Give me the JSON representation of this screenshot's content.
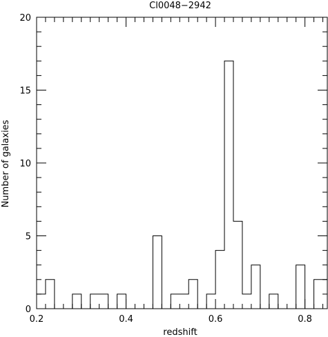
{
  "chart_data": {
    "type": "bar",
    "title": "Cl0048−2942",
    "xlabel": "redshift",
    "ylabel": "Number of galaxies",
    "xlim": [
      0.2,
      0.85
    ],
    "ylim": [
      0,
      20
    ],
    "grid": false,
    "bin_width": 0.02,
    "bins": [
      {
        "x0": 0.2,
        "x1": 0.22,
        "count": 1
      },
      {
        "x0": 0.22,
        "x1": 0.24,
        "count": 2
      },
      {
        "x0": 0.24,
        "x1": 0.26,
        "count": 0
      },
      {
        "x0": 0.26,
        "x1": 0.28,
        "count": 0
      },
      {
        "x0": 0.28,
        "x1": 0.3,
        "count": 1
      },
      {
        "x0": 0.3,
        "x1": 0.32,
        "count": 0
      },
      {
        "x0": 0.32,
        "x1": 0.34,
        "count": 1
      },
      {
        "x0": 0.34,
        "x1": 0.36,
        "count": 1
      },
      {
        "x0": 0.36,
        "x1": 0.38,
        "count": 0
      },
      {
        "x0": 0.38,
        "x1": 0.4,
        "count": 1
      },
      {
        "x0": 0.4,
        "x1": 0.42,
        "count": 0
      },
      {
        "x0": 0.42,
        "x1": 0.44,
        "count": 0
      },
      {
        "x0": 0.44,
        "x1": 0.46,
        "count": 0
      },
      {
        "x0": 0.46,
        "x1": 0.48,
        "count": 5
      },
      {
        "x0": 0.48,
        "x1": 0.5,
        "count": 0
      },
      {
        "x0": 0.5,
        "x1": 0.52,
        "count": 1
      },
      {
        "x0": 0.52,
        "x1": 0.54,
        "count": 1
      },
      {
        "x0": 0.54,
        "x1": 0.56,
        "count": 2
      },
      {
        "x0": 0.56,
        "x1": 0.58,
        "count": 0
      },
      {
        "x0": 0.58,
        "x1": 0.6,
        "count": 1
      },
      {
        "x0": 0.6,
        "x1": 0.62,
        "count": 4
      },
      {
        "x0": 0.62,
        "x1": 0.64,
        "count": 17
      },
      {
        "x0": 0.64,
        "x1": 0.66,
        "count": 6
      },
      {
        "x0": 0.66,
        "x1": 0.68,
        "count": 1
      },
      {
        "x0": 0.68,
        "x1": 0.7,
        "count": 3
      },
      {
        "x0": 0.7,
        "x1": 0.72,
        "count": 0
      },
      {
        "x0": 0.72,
        "x1": 0.74,
        "count": 1
      },
      {
        "x0": 0.74,
        "x1": 0.76,
        "count": 0
      },
      {
        "x0": 0.76,
        "x1": 0.78,
        "count": 0
      },
      {
        "x0": 0.78,
        "x1": 0.8,
        "count": 3
      },
      {
        "x0": 0.8,
        "x1": 0.82,
        "count": 0
      },
      {
        "x0": 0.82,
        "x1": 0.84,
        "count": 2
      },
      {
        "x0": 0.84,
        "x1": 0.85,
        "count": 2
      }
    ],
    "x_ticks": [
      {
        "value": 0.2,
        "label": "0.2"
      },
      {
        "value": 0.4,
        "label": "0.4"
      },
      {
        "value": 0.6,
        "label": "0.6"
      },
      {
        "value": 0.8,
        "label": "0.8"
      }
    ],
    "y_ticks": [
      {
        "value": 0,
        "label": "0"
      },
      {
        "value": 5,
        "label": "5"
      },
      {
        "value": 10,
        "label": "10"
      },
      {
        "value": 15,
        "label": "15"
      },
      {
        "value": 20,
        "label": "20"
      }
    ],
    "colors": {
      "line": "#000000",
      "background": "#ffffff"
    }
  }
}
